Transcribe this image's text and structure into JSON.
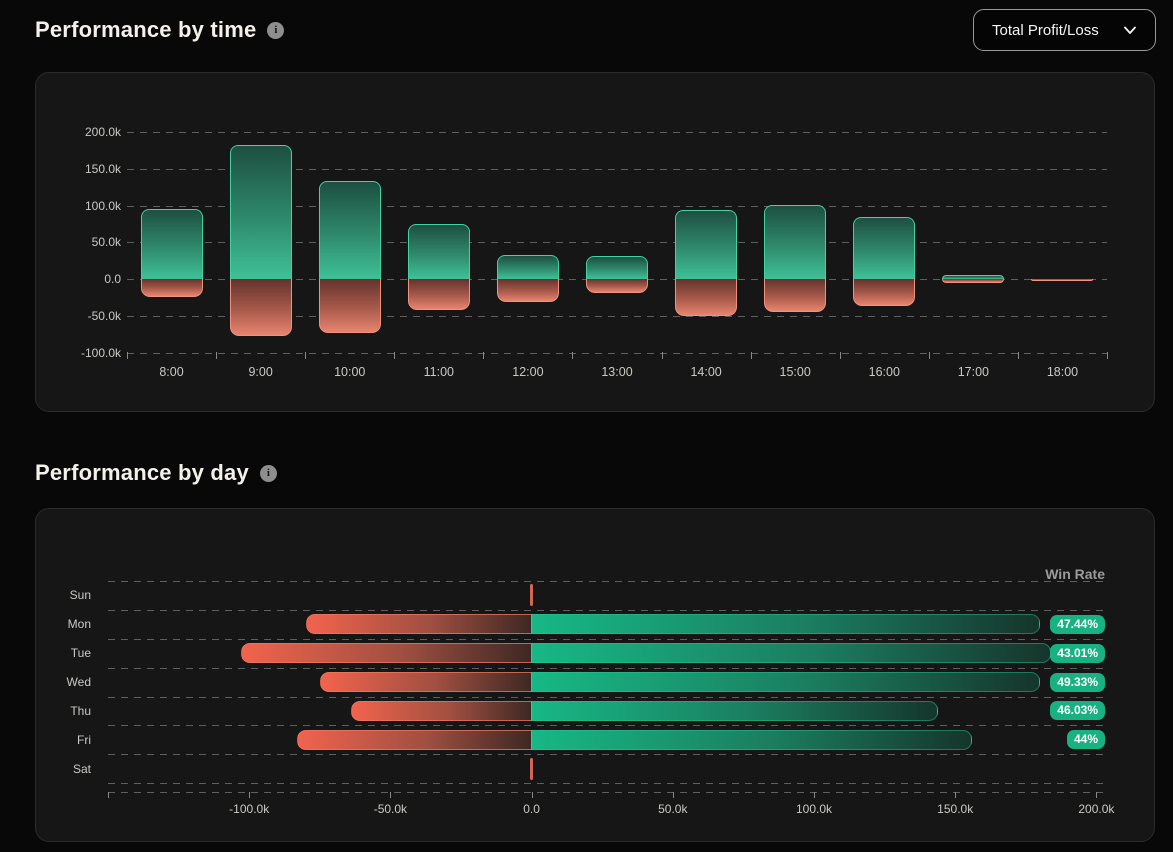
{
  "header": {
    "time_title": "Performance by time",
    "day_title": "Performance by day",
    "info_icon": "i"
  },
  "dropdown": {
    "selected_label": "Total Profit/Loss"
  },
  "colors": {
    "profit_bright": "#3fc197",
    "profit_dark": "#1d4f41",
    "profit_border": "#43d3a3",
    "loss_bright": "#f2634d",
    "loss_dark": "#3e2823",
    "loss_border": "#ef927e",
    "badge_bg": "#17b182",
    "grid": "#5f5f5f",
    "panel_bg": "#161616",
    "page_bg": "#080808"
  },
  "chart_data": [
    {
      "type": "bar",
      "orientation": "vertical",
      "title": "Performance by time",
      "unit": "thousands",
      "categories": [
        "8:00",
        "9:00",
        "10:00",
        "11:00",
        "12:00",
        "13:00",
        "14:00",
        "15:00",
        "16:00",
        "17:00",
        "18:00"
      ],
      "series": [
        {
          "name": "profit",
          "values_k": [
            95,
            182,
            134,
            75,
            33,
            31,
            94,
            101,
            84,
            6,
            0
          ]
        },
        {
          "name": "loss",
          "values_k": [
            -24,
            -77,
            -73,
            -42,
            -31,
            -19,
            -50,
            -45,
            -37,
            -6,
            -2
          ]
        }
      ],
      "yticks": [
        {
          "label": "200.0k",
          "value_k": 200
        },
        {
          "label": "150.0k",
          "value_k": 150
        },
        {
          "label": "100.0k",
          "value_k": 100
        },
        {
          "label": "50.0k",
          "value_k": 50
        },
        {
          "label": "0.0",
          "value_k": 0
        },
        {
          "label": "-50.0k",
          "value_k": -50
        },
        {
          "label": "-100.0k",
          "value_k": -100
        }
      ],
      "ylim_k": [
        -100,
        200
      ],
      "grid": true
    },
    {
      "type": "bar",
      "orientation": "horizontal",
      "title": "Performance by day",
      "legend": "Win Rate",
      "unit": "thousands",
      "categories": [
        "Sun",
        "Mon",
        "Tue",
        "Wed",
        "Thu",
        "Fri",
        "Sat"
      ],
      "series": [
        {
          "name": "loss",
          "values_k": [
            0,
            -80,
            -103,
            -75,
            -64,
            -83,
            0
          ]
        },
        {
          "name": "profit",
          "values_k": [
            0,
            180,
            184,
            180,
            144,
            156,
            0
          ]
        }
      ],
      "win_rates": [
        "",
        "47.44%",
        "43.01%",
        "49.33%",
        "46.03%",
        "44%",
        ""
      ],
      "xticks": [
        {
          "label": "-100.0k",
          "value_k": -100
        },
        {
          "label": "-50.0k",
          "value_k": -50
        },
        {
          "label": "0.0",
          "value_k": 0
        },
        {
          "label": "50.0k",
          "value_k": 50
        },
        {
          "label": "100.0k",
          "value_k": 100
        },
        {
          "label": "150.0k",
          "value_k": 150
        },
        {
          "label": "200.0k",
          "value_k": 200
        }
      ],
      "xlim_k": [
        -150,
        200
      ],
      "grid": true
    }
  ]
}
